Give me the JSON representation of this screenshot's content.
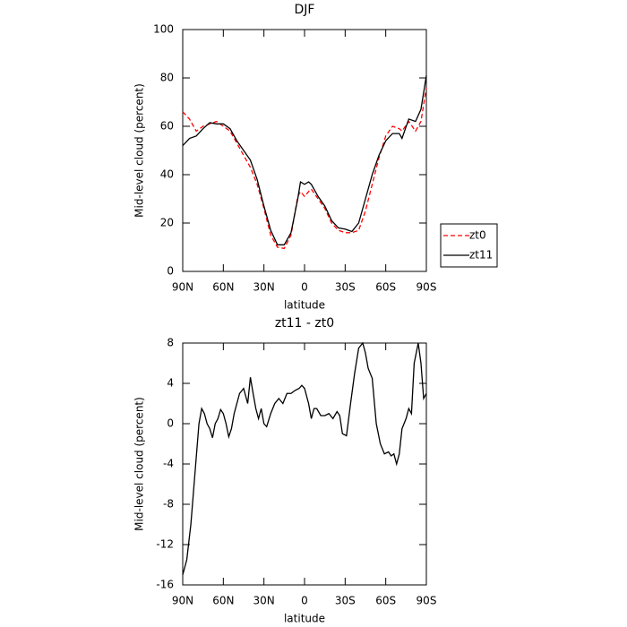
{
  "chart_data": [
    {
      "type": "line",
      "title": "DJF",
      "x_label": "latitude",
      "y_label": "Mid-level cloud (percent)",
      "x": [
        90,
        85,
        80,
        75,
        70,
        65,
        60,
        55,
        50,
        45,
        40,
        35,
        30,
        25,
        20,
        15,
        10,
        5,
        3,
        0,
        -3,
        -5,
        -10,
        -15,
        -20,
        -25,
        -30,
        -35,
        -40,
        -45,
        -50,
        -55,
        -60,
        -65,
        -70,
        -72,
        -77,
        -82,
        -86,
        -90
      ],
      "series": [
        {
          "name": "zt0",
          "color": "#ff0000",
          "dash": true,
          "values": [
            66,
            63,
            58,
            60,
            61,
            62,
            60,
            58,
            53,
            48,
            43,
            36,
            26,
            15,
            10,
            9.5,
            15,
            31,
            33,
            31,
            33,
            34,
            30,
            26,
            20,
            17,
            16,
            16,
            17,
            25,
            36,
            47,
            56,
            60,
            59,
            58,
            62,
            58,
            62,
            76
          ]
        },
        {
          "name": "zt11",
          "color": "#000000",
          "dash": false,
          "values": [
            52,
            55,
            56,
            59,
            61.5,
            61,
            61,
            59,
            54,
            50,
            46,
            38,
            27,
            17,
            11,
            11,
            16,
            30,
            37,
            36,
            37,
            36,
            31,
            27,
            21,
            18,
            17.5,
            16.5,
            20,
            30,
            40,
            48,
            54,
            57,
            57,
            55,
            63,
            62,
            67,
            81
          ]
        }
      ],
      "xlim": [
        90,
        -90
      ],
      "xticks": [
        {
          "value": 90,
          "label": "90N"
        },
        {
          "value": 60,
          "label": "60N"
        },
        {
          "value": 30,
          "label": "30N"
        },
        0,
        {
          "value": -30,
          "label": "30S"
        },
        {
          "value": -60,
          "label": "60S"
        },
        {
          "value": -90,
          "label": "90S"
        }
      ],
      "ylim": [
        0,
        100
      ],
      "yticks": [
        0,
        20,
        40,
        60,
        80,
        100
      ],
      "legend": "right"
    },
    {
      "type": "line",
      "title": "zt11 - zt0",
      "x_label": "latitude",
      "y_label": "Mid-level cloud (percent)",
      "x": [
        90,
        87,
        84,
        81,
        78,
        76,
        74,
        72,
        70,
        68,
        66,
        64,
        62,
        60,
        58,
        56,
        54,
        52,
        50,
        48,
        45,
        42,
        40,
        38,
        36,
        34,
        32,
        30,
        28,
        25,
        22,
        19,
        16,
        13,
        10,
        7,
        4,
        2,
        0,
        -3,
        -5,
        -7,
        -9,
        -12,
        -15,
        -18,
        -21,
        -24,
        -26,
        -28,
        -31,
        -34,
        -37,
        -40,
        -43,
        -45,
        -47,
        -50,
        -53,
        -56,
        -59,
        -62,
        -64,
        -66,
        -68,
        -70,
        -72,
        -75,
        -77,
        -79,
        -81,
        -84,
        -86,
        -88,
        -90
      ],
      "values": [
        -15,
        -13.5,
        -10,
        -5,
        0,
        1.5,
        1,
        0,
        -0.5,
        -1.4,
        0,
        0.5,
        1.4,
        1,
        0,
        -1.3,
        -0.5,
        1,
        2,
        3,
        3.5,
        2,
        4.6,
        3,
        1.5,
        0.5,
        1.5,
        0,
        -0.3,
        1,
        2,
        2.5,
        2,
        3,
        3,
        3.3,
        3.5,
        3.8,
        3.5,
        2,
        0.5,
        1.5,
        1.5,
        0.8,
        0.8,
        1,
        0.5,
        1.2,
        0.8,
        -1,
        -1.2,
        2,
        5,
        7.5,
        8,
        7,
        5.5,
        4.5,
        0,
        -2,
        -3,
        -2.8,
        -3.2,
        -3,
        -4,
        -3,
        -0.5,
        0.5,
        1.5,
        1,
        6,
        8,
        6,
        2.5,
        3
      ],
      "color": "#000000",
      "xlim": [
        90,
        -90
      ],
      "xticks": [
        {
          "value": 90,
          "label": "90N"
        },
        {
          "value": 60,
          "label": "60N"
        },
        {
          "value": 30,
          "label": "30N"
        },
        0,
        {
          "value": -30,
          "label": "30S"
        },
        {
          "value": -60,
          "label": "60S"
        },
        {
          "value": -90,
          "label": "90S"
        }
      ],
      "ylim": [
        -16,
        8
      ],
      "yticks": [
        -16,
        -12,
        -8,
        -4,
        0,
        4,
        8
      ]
    }
  ]
}
